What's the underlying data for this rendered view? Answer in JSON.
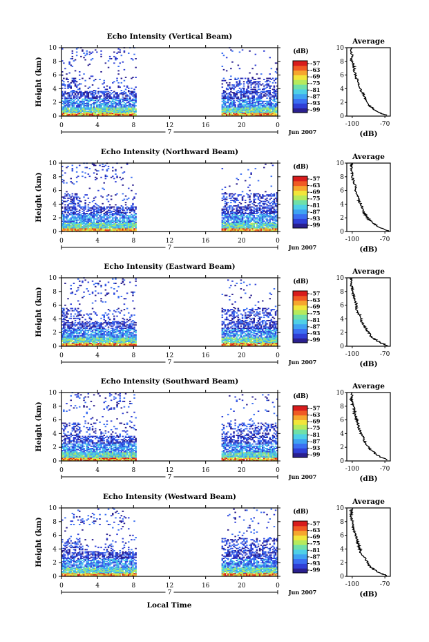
{
  "figure": {
    "xlabel_bottom": "Local Time",
    "date_label": "Jun 2007",
    "day_label": "7",
    "average_title": "Average",
    "average_xlabel": "(dB)",
    "colorbar_title": "(dB)"
  },
  "chart_data": [
    {
      "type": "heatmap",
      "title": "Echo Intensity (Vertical Beam)",
      "xlabel": "",
      "ylabel": "Height (km)",
      "x_ticks": [
        "0",
        "4",
        "8",
        "12",
        "16",
        "20",
        "0"
      ],
      "y_ticks": [
        "0",
        "2",
        "4",
        "6",
        "8",
        "10"
      ],
      "xlim": [
        0,
        24
      ],
      "ylim": [
        0,
        10
      ],
      "colorbar_ticks": [
        "-57",
        "-63",
        "-69",
        "-75",
        "-81",
        "-87",
        "-93",
        "-99"
      ],
      "data_gap_hours": [
        8.3,
        17.7
      ],
      "average_profile": {
        "xlim": [
          -105,
          -65
        ],
        "x_ticks": [
          "-100",
          "-70"
        ],
        "y_ticks": [
          "0",
          "2",
          "4",
          "6",
          "8",
          "10"
        ],
        "height_km": [
          0.1,
          0.5,
          1.0,
          1.5,
          2.0,
          2.5,
          3.0,
          3.5,
          4.0,
          4.5,
          5.0,
          5.5,
          6.0,
          6.5,
          7.0,
          7.5,
          8.0,
          8.5,
          9.0,
          9.5,
          10.0
        ],
        "echo_db": [
          -68,
          -75,
          -80,
          -84,
          -86,
          -88,
          -89,
          -91,
          -93,
          -94,
          -95,
          -96,
          -97,
          -98,
          -98,
          -99,
          -100,
          -101,
          -100,
          -101,
          -100
        ]
      }
    },
    {
      "type": "heatmap",
      "title": "Echo Intensity (Northward Beam)",
      "xlabel": "",
      "ylabel": "Height (km)",
      "x_ticks": [
        "0",
        "4",
        "8",
        "12",
        "16",
        "20",
        "0"
      ],
      "y_ticks": [
        "0",
        "2",
        "4",
        "6",
        "8",
        "10"
      ],
      "xlim": [
        0,
        24
      ],
      "ylim": [
        0,
        10
      ],
      "colorbar_ticks": [
        "-57",
        "-63",
        "-69",
        "-75",
        "-81",
        "-87",
        "-93",
        "-99"
      ],
      "data_gap_hours": [
        8.3,
        17.7
      ],
      "average_profile": {
        "xlim": [
          -105,
          -65
        ],
        "x_ticks": [
          "-100",
          "-70"
        ],
        "y_ticks": [
          "0",
          "2",
          "4",
          "6",
          "8",
          "10"
        ],
        "height_km": [
          0.1,
          0.5,
          1.0,
          1.5,
          2.0,
          2.5,
          3.0,
          3.5,
          4.0,
          4.5,
          5.0,
          5.5,
          6.0,
          6.5,
          7.0,
          7.5,
          8.0,
          8.5,
          9.0,
          9.5,
          10.0
        ],
        "echo_db": [
          -67,
          -74,
          -79,
          -83,
          -86,
          -88,
          -90,
          -91,
          -92,
          -94,
          -95,
          -96,
          -97,
          -97,
          -98,
          -99,
          -100,
          -100,
          -101,
          -101,
          -100
        ]
      }
    },
    {
      "type": "heatmap",
      "title": "Echo Intensity (Eastward Beam)",
      "xlabel": "",
      "ylabel": "Height (km)",
      "x_ticks": [
        "0",
        "4",
        "8",
        "12",
        "16",
        "20",
        "0"
      ],
      "y_ticks": [
        "0",
        "2",
        "4",
        "6",
        "8",
        "10"
      ],
      "xlim": [
        0,
        24
      ],
      "ylim": [
        0,
        10
      ],
      "colorbar_ticks": [
        "-57",
        "-63",
        "-69",
        "-75",
        "-81",
        "-87",
        "-93",
        "-99"
      ],
      "data_gap_hours": [
        8.3,
        17.7
      ],
      "average_profile": {
        "xlim": [
          -105,
          -65
        ],
        "x_ticks": [
          "-100",
          "-70"
        ],
        "y_ticks": [
          "0",
          "2",
          "4",
          "6",
          "8",
          "10"
        ],
        "height_km": [
          0.1,
          0.5,
          1.0,
          1.5,
          2.0,
          2.5,
          3.0,
          3.5,
          4.0,
          4.5,
          5.0,
          5.5,
          6.0,
          6.5,
          7.0,
          7.5,
          8.0,
          8.5,
          9.0,
          9.5,
          10.0
        ],
        "echo_db": [
          -68,
          -74,
          -79,
          -83,
          -85,
          -87,
          -89,
          -91,
          -92,
          -93,
          -95,
          -96,
          -96,
          -97,
          -98,
          -99,
          -100,
          -100,
          -101,
          -101,
          -101
        ]
      }
    },
    {
      "type": "heatmap",
      "title": "Echo Intensity (Southward Beam)",
      "xlabel": "",
      "ylabel": "Height (km)",
      "x_ticks": [
        "0",
        "4",
        "8",
        "12",
        "16",
        "20",
        "0"
      ],
      "y_ticks": [
        "0",
        "2",
        "4",
        "6",
        "8",
        "10"
      ],
      "xlim": [
        0,
        24
      ],
      "ylim": [
        0,
        10
      ],
      "colorbar_ticks": [
        "-57",
        "-63",
        "-69",
        "-75",
        "-81",
        "-87",
        "-93",
        "-99"
      ],
      "data_gap_hours": [
        8.3,
        17.7
      ],
      "average_profile": {
        "xlim": [
          -105,
          -65
        ],
        "x_ticks": [
          "-100",
          "-70"
        ],
        "y_ticks": [
          "0",
          "2",
          "4",
          "6",
          "8",
          "10"
        ],
        "height_km": [
          0.1,
          0.5,
          1.0,
          1.5,
          2.0,
          2.5,
          3.0,
          3.5,
          4.0,
          4.5,
          5.0,
          5.5,
          6.0,
          6.5,
          7.0,
          7.5,
          8.0,
          8.5,
          9.0,
          9.5,
          10.0
        ],
        "echo_db": [
          -67,
          -73,
          -78,
          -82,
          -85,
          -87,
          -89,
          -90,
          -92,
          -93,
          -94,
          -95,
          -96,
          -97,
          -98,
          -98,
          -99,
          -100,
          -101,
          -100,
          -101
        ]
      }
    },
    {
      "type": "heatmap",
      "title": "Echo Intensity (Westward Beam)",
      "xlabel": "",
      "ylabel": "Height (km)",
      "x_ticks": [
        "0",
        "4",
        "8",
        "12",
        "16",
        "20",
        "0"
      ],
      "y_ticks": [
        "0",
        "2",
        "4",
        "6",
        "8",
        "10"
      ],
      "xlim": [
        0,
        24
      ],
      "ylim": [
        0,
        10
      ],
      "colorbar_ticks": [
        "-57",
        "-63",
        "-69",
        "-75",
        "-81",
        "-87",
        "-93",
        "-99"
      ],
      "data_gap_hours": [
        8.3,
        17.7
      ],
      "average_profile": {
        "xlim": [
          -105,
          -65
        ],
        "x_ticks": [
          "-100",
          "-70"
        ],
        "y_ticks": [
          "0",
          "2",
          "4",
          "6",
          "8",
          "10"
        ],
        "height_km": [
          0.1,
          0.5,
          1.0,
          1.5,
          2.0,
          2.5,
          3.0,
          3.5,
          4.0,
          4.5,
          5.0,
          5.5,
          6.0,
          6.5,
          7.0,
          7.5,
          8.0,
          8.5,
          9.0,
          9.5,
          10.0
        ],
        "echo_db": [
          -68,
          -75,
          -80,
          -84,
          -86,
          -88,
          -90,
          -92,
          -93,
          -94,
          -95,
          -96,
          -97,
          -98,
          -99,
          -99,
          -100,
          -101,
          -101,
          -101,
          -100
        ]
      }
    }
  ],
  "colors": {
    "colormap": [
      "#2a1f8f",
      "#2f3fd6",
      "#3b6ff2",
      "#3fa3f2",
      "#4fd0e6",
      "#6fe0a8",
      "#b6ea5c",
      "#f2e53a",
      "#f6a62e",
      "#f05a24",
      "#d81c1c"
    ],
    "axis": "#000000",
    "background": "#ffffff"
  }
}
